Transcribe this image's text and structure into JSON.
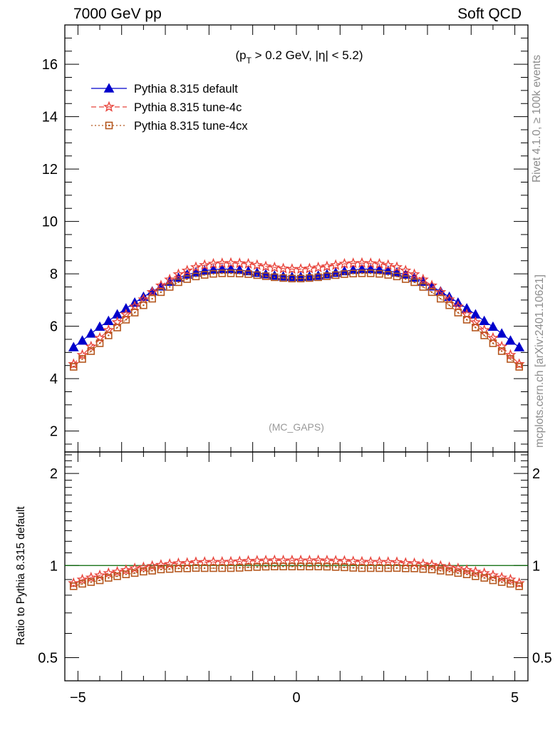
{
  "header": {
    "left": "7000 GeV pp",
    "right": "Soft QCD"
  },
  "side_labels": {
    "rivet": "Rivet 4.1.0, ≥ 100k events",
    "mcplots": "mcplots.cern.ch [arXiv:2401.10621]"
  },
  "chart_data": [
    {
      "type": "line",
      "panel": "main",
      "subtitle_parts": [
        "(p",
        "T",
        " > 0.2 GeV, |η| < 5.2)"
      ],
      "watermark": "(MC_GAPS)",
      "xlim": [
        -5.3,
        5.3
      ],
      "ylim": [
        1.2,
        17.5
      ],
      "xticks": [
        -5,
        0,
        5
      ],
      "xtick_labels": [
        "−5",
        "0",
        "5"
      ],
      "yticks": [
        2,
        4,
        6,
        8,
        10,
        12,
        14,
        16
      ],
      "ytick_labels": [
        "2",
        "4",
        "6",
        "8",
        "10",
        "12",
        "14",
        "16"
      ],
      "legend_position": "top-left",
      "x": [
        -5.1,
        -4.9,
        -4.7,
        -4.5,
        -4.3,
        -4.1,
        -3.9,
        -3.7,
        -3.5,
        -3.3,
        -3.1,
        -2.9,
        -2.7,
        -2.5,
        -2.3,
        -2.1,
        -1.9,
        -1.7,
        -1.5,
        -1.3,
        -1.1,
        -0.9,
        -0.7,
        -0.5,
        -0.3,
        -0.1,
        0.1,
        0.3,
        0.5,
        0.7,
        0.9,
        1.1,
        1.3,
        1.5,
        1.7,
        1.9,
        2.1,
        2.3,
        2.5,
        2.7,
        2.9,
        3.1,
        3.3,
        3.5,
        3.7,
        3.9,
        4.1,
        4.3,
        4.5,
        4.7,
        4.9,
        5.1
      ],
      "series": [
        {
          "name": "Pythia 8.315 default",
          "color": "#0000cc",
          "marker": "triangle",
          "values": [
            5.2,
            5.45,
            5.72,
            5.98,
            6.2,
            6.45,
            6.68,
            6.9,
            7.12,
            7.33,
            7.52,
            7.7,
            7.85,
            7.97,
            8.05,
            8.12,
            8.16,
            8.18,
            8.18,
            8.15,
            8.1,
            8.04,
            7.98,
            7.93,
            7.9,
            7.88,
            7.88,
            7.9,
            7.93,
            7.98,
            8.04,
            8.1,
            8.15,
            8.18,
            8.18,
            8.16,
            8.12,
            8.05,
            7.97,
            7.85,
            7.7,
            7.52,
            7.33,
            7.12,
            6.9,
            6.68,
            6.45,
            6.2,
            5.98,
            5.72,
            5.45,
            5.2
          ]
        },
        {
          "name": "Pythia 8.315 tune-4c",
          "color": "#e8453c",
          "marker": "star",
          "values": [
            4.55,
            4.9,
            5.22,
            5.55,
            5.85,
            6.15,
            6.45,
            6.75,
            7.02,
            7.3,
            7.55,
            7.78,
            7.98,
            8.12,
            8.25,
            8.33,
            8.38,
            8.4,
            8.41,
            8.4,
            8.38,
            8.33,
            8.28,
            8.24,
            8.2,
            8.18,
            8.18,
            8.2,
            8.24,
            8.28,
            8.33,
            8.38,
            8.4,
            8.41,
            8.4,
            8.38,
            8.33,
            8.25,
            8.12,
            7.98,
            7.78,
            7.55,
            7.3,
            7.02,
            6.75,
            6.45,
            6.15,
            5.85,
            5.55,
            5.22,
            4.9,
            4.55
          ]
        },
        {
          "name": "Pythia 8.315 tune-4cx",
          "color": "#b5581f",
          "marker": "square",
          "values": [
            4.45,
            4.75,
            5.05,
            5.35,
            5.65,
            5.95,
            6.25,
            6.52,
            6.8,
            7.05,
            7.3,
            7.5,
            7.68,
            7.8,
            7.9,
            7.96,
            8.0,
            8.02,
            8.02,
            8.01,
            7.99,
            7.95,
            7.91,
            7.87,
            7.84,
            7.82,
            7.82,
            7.84,
            7.87,
            7.91,
            7.95,
            7.99,
            8.01,
            8.02,
            8.02,
            8.0,
            7.96,
            7.9,
            7.8,
            7.68,
            7.5,
            7.3,
            7.05,
            6.8,
            6.52,
            6.25,
            5.95,
            5.65,
            5.35,
            5.05,
            4.75,
            4.45
          ]
        }
      ]
    },
    {
      "type": "line",
      "panel": "ratio",
      "ylabel": "Ratio to Pythia 8.315 default",
      "yscale": "log",
      "xlim": [
        -5.3,
        5.3
      ],
      "ylim": [
        0.42,
        2.35
      ],
      "yticks": [
        0.5,
        1,
        2
      ],
      "ytick_labels": [
        "0.5",
        "1",
        "2"
      ],
      "reference_line": 1.0,
      "reference_color": "#006400"
    }
  ]
}
